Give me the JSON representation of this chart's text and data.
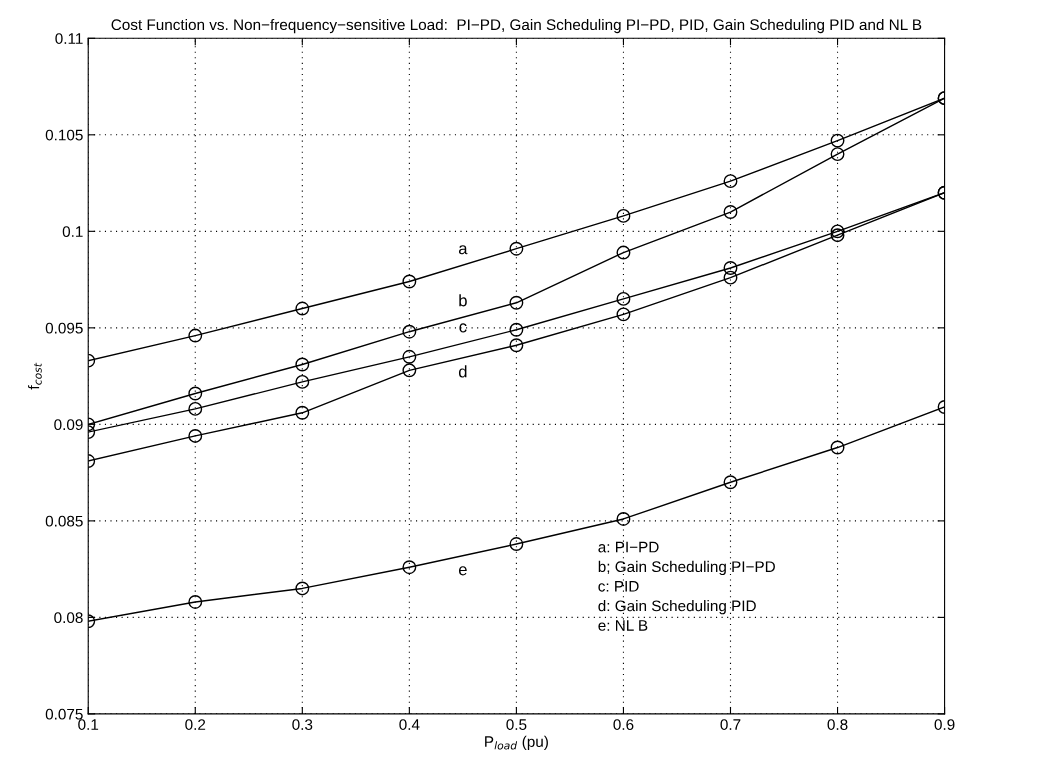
{
  "chart_data": {
    "type": "line",
    "title": "Cost Function vs. Non−frequency−sensitive Load:  PI−PD, Gain Scheduling PI−PD, PID, Gain Scheduling PID and NL B",
    "xlabel": "P$_{load}$ (pu)",
    "ylabel": "f$_{cost}$",
    "x": [
      0.1,
      0.2,
      0.3,
      0.4,
      0.5,
      0.6,
      0.7,
      0.8,
      0.9
    ],
    "series": [
      {
        "name": "a",
        "color": "#000000",
        "values": [
          0.0933,
          0.0946,
          0.096,
          0.0974,
          0.0991,
          0.1008,
          0.1026,
          0.1047,
          0.1069
        ]
      },
      {
        "name": "b",
        "color": "#000000",
        "values": [
          0.09,
          0.0916,
          0.0931,
          0.0948,
          0.0963,
          0.0989,
          0.101,
          0.104,
          0.1069
        ]
      },
      {
        "name": "c",
        "color": "#000000",
        "values": [
          0.0896,
          0.0908,
          0.0922,
          0.0935,
          0.0949,
          0.0965,
          0.0981,
          0.1,
          0.102
        ]
      },
      {
        "name": "d",
        "color": "#000000",
        "values": [
          0.0881,
          0.0894,
          0.0906,
          0.0928,
          0.0941,
          0.0957,
          0.0976,
          0.0998,
          0.102
        ]
      },
      {
        "name": "e",
        "color": "#000000",
        "values": [
          0.0798,
          0.0808,
          0.0815,
          0.0826,
          0.0838,
          0.0851,
          0.087,
          0.0888,
          0.0909
        ]
      }
    ],
    "annotations": [
      "a: PI−PD",
      "b; Gain Scheduling PI−PD",
      "c: PID",
      "d: Gain Scheduling PID",
      "e: NL B"
    ],
    "xlim": [
      0.1,
      0.9
    ],
    "ylim": [
      0.075,
      0.11
    ],
    "xticks": [
      0.1,
      0.2,
      0.3,
      0.4,
      0.5,
      0.6,
      0.7,
      0.8,
      0.9
    ],
    "yticks": [
      0.075,
      0.08,
      0.085,
      0.09,
      0.095,
      0.1,
      0.105,
      0.11
    ],
    "grid": true,
    "marker": "circle",
    "line_style": "solid",
    "legend": false
  }
}
